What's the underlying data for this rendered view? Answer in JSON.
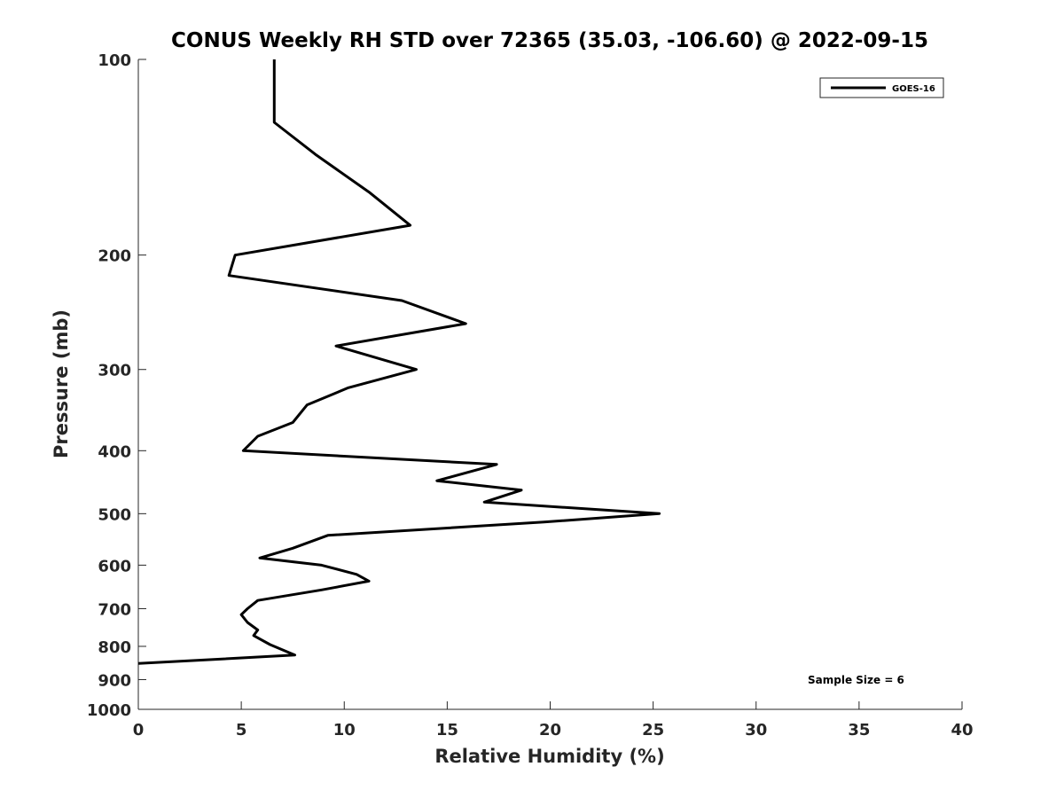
{
  "chart_data": {
    "type": "line",
    "title": "CONUS Weekly RH STD over 72365 (35.03, -106.60) @ 2022-09-15",
    "xlabel": "Relative Humidity (%)",
    "ylabel": "Pressure (mb)",
    "xlim": [
      0,
      40
    ],
    "ylim": [
      100,
      1000
    ],
    "y_scale": "log",
    "y_reversed": true,
    "x_ticks": [
      0,
      5,
      10,
      15,
      20,
      25,
      30,
      35,
      40
    ],
    "y_ticks": [
      100,
      200,
      300,
      400,
      500,
      600,
      700,
      800,
      900,
      1000
    ],
    "grid": false,
    "legend_position": "top-right",
    "annotation": "Sample Size = 6",
    "series": [
      {
        "name": "GOES-16",
        "color": "#000000",
        "points": [
          {
            "rh": 6.6,
            "p": 100
          },
          {
            "rh": 6.6,
            "p": 115
          },
          {
            "rh": 6.6,
            "p": 125
          },
          {
            "rh": 8.6,
            "p": 140
          },
          {
            "rh": 11.2,
            "p": 160
          },
          {
            "rh": 13.2,
            "p": 180
          },
          {
            "rh": 4.7,
            "p": 200
          },
          {
            "rh": 4.4,
            "p": 215
          },
          {
            "rh": 12.8,
            "p": 235
          },
          {
            "rh": 15.9,
            "p": 255
          },
          {
            "rh": 9.6,
            "p": 276
          },
          {
            "rh": 13.5,
            "p": 300
          },
          {
            "rh": 10.2,
            "p": 320
          },
          {
            "rh": 8.2,
            "p": 340
          },
          {
            "rh": 7.5,
            "p": 362
          },
          {
            "rh": 5.8,
            "p": 380
          },
          {
            "rh": 5.1,
            "p": 400
          },
          {
            "rh": 17.4,
            "p": 420
          },
          {
            "rh": 14.5,
            "p": 445
          },
          {
            "rh": 18.6,
            "p": 460
          },
          {
            "rh": 16.8,
            "p": 480
          },
          {
            "rh": 25.3,
            "p": 500
          },
          {
            "rh": 19.7,
            "p": 515
          },
          {
            "rh": 9.2,
            "p": 540
          },
          {
            "rh": 7.5,
            "p": 565
          },
          {
            "rh": 5.9,
            "p": 585
          },
          {
            "rh": 8.9,
            "p": 600
          },
          {
            "rh": 10.6,
            "p": 620
          },
          {
            "rh": 11.2,
            "p": 635
          },
          {
            "rh": 8.9,
            "p": 655
          },
          {
            "rh": 5.8,
            "p": 680
          },
          {
            "rh": 5.3,
            "p": 700
          },
          {
            "rh": 5.0,
            "p": 715
          },
          {
            "rh": 5.3,
            "p": 735
          },
          {
            "rh": 5.8,
            "p": 755
          },
          {
            "rh": 5.6,
            "p": 770
          },
          {
            "rh": 6.4,
            "p": 795
          },
          {
            "rh": 7.6,
            "p": 825
          },
          {
            "rh": 0.0,
            "p": 850
          }
        ]
      }
    ]
  }
}
